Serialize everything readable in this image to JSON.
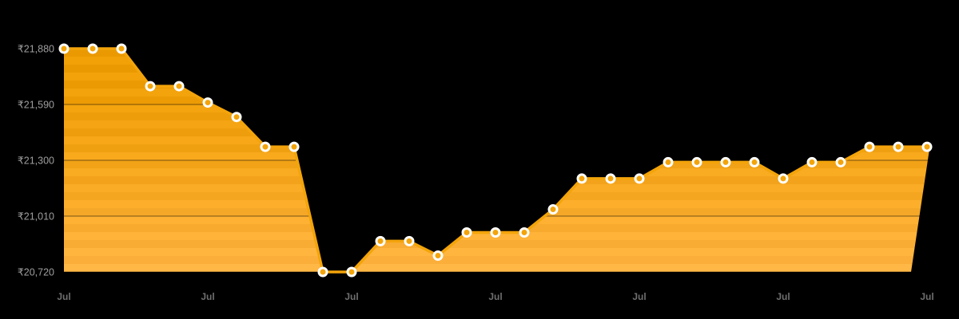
{
  "chart_data": {
    "type": "area",
    "title": "",
    "currency_symbol": "₹",
    "values": [
      21880,
      21880,
      21880,
      21685,
      21685,
      21600,
      21525,
      21370,
      21370,
      20720,
      20720,
      20880,
      20880,
      20805,
      20925,
      20925,
      20925,
      21045,
      21205,
      21205,
      21205,
      21290,
      21290,
      21290,
      21290,
      21205,
      21290,
      21290,
      21370,
      21370,
      21370
    ],
    "ylim": [
      20720,
      21880
    ],
    "y_ticks": [
      {
        "value": 21880,
        "label": "₹21,880"
      },
      {
        "value": 21590,
        "label": "₹21,590"
      },
      {
        "value": 21300,
        "label": "₹21,300"
      },
      {
        "value": 21010,
        "label": "₹21,010"
      },
      {
        "value": 20720,
        "label": "₹20,720"
      }
    ],
    "x_ticks": [
      {
        "index": 0,
        "label": "Jul"
      },
      {
        "index": 5,
        "label": "Jul"
      },
      {
        "index": 10,
        "label": "Jul"
      },
      {
        "index": 15,
        "label": "Jul"
      },
      {
        "index": 20,
        "label": "Jul"
      },
      {
        "index": 25,
        "label": "Jul"
      },
      {
        "index": 30,
        "label": "Jul"
      }
    ],
    "grid": true,
    "legend": false,
    "colors": {
      "background": "#000000",
      "area_top": "#ED9C02",
      "area_bottom": "#FFB340",
      "line": "#F3A40A",
      "marker_fill": "#F3A40A",
      "marker_stroke": "#FFFFFF",
      "gridline": "rgba(0,0,0,0.26)",
      "y_label": "#9E9E9E",
      "x_label": "#6E6E6E"
    }
  }
}
